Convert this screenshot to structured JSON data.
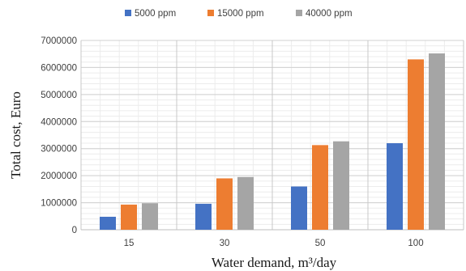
{
  "chart_data": {
    "type": "bar",
    "categories": [
      "15",
      "30",
      "50",
      "100"
    ],
    "series": [
      {
        "name": "5000 ppm",
        "color": "#4472C4",
        "values": [
          480000,
          960000,
          1600000,
          3200000
        ]
      },
      {
        "name": "15000 ppm",
        "color": "#ED7D31",
        "values": [
          930000,
          1900000,
          3130000,
          6300000
        ]
      },
      {
        "name": "40000 ppm",
        "color": "#A5A5A5",
        "values": [
          980000,
          1950000,
          3270000,
          6520000
        ]
      }
    ],
    "y_ticks": [
      "0",
      "1000000",
      "2000000",
      "3000000",
      "4000000",
      "5000000",
      "6000000",
      "7000000"
    ],
    "ylim": [
      0,
      7000000
    ],
    "xlabel": "Water demand, m³/day",
    "ylabel": "Total cost, Euro",
    "legend_position": "top-center",
    "grid": true
  }
}
